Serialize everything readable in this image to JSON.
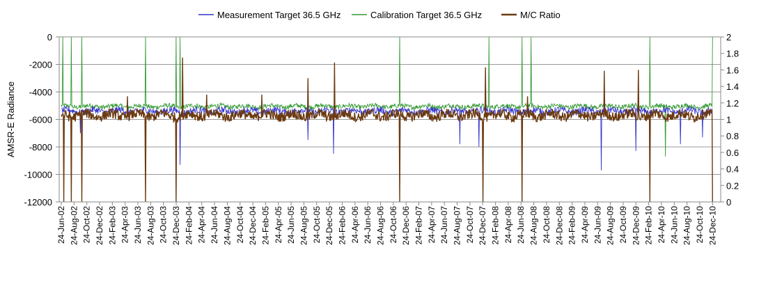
{
  "chart_data": {
    "type": "line",
    "title": "",
    "ylabel": "AMSR-E Radiance",
    "y2label": "",
    "ylim": [
      -12000,
      0
    ],
    "y2lim": [
      0,
      2
    ],
    "yticks": [
      0,
      -2000,
      -4000,
      -6000,
      -8000,
      -10000,
      -12000
    ],
    "yticks_labels": [
      "0",
      "-2000",
      "-4000",
      "-6000",
      "-8000",
      "-10000",
      "-12000"
    ],
    "y2ticks": [
      2,
      1.8,
      1.6,
      1.4,
      1.2,
      1,
      0.8,
      0.6,
      0.4,
      0.2,
      0
    ],
    "y2ticks_labels": [
      "2",
      "1.8",
      "1.6",
      "1.4",
      "1.2",
      "1",
      "0.8",
      "0.6",
      "0.4",
      "0.2",
      "0"
    ],
    "grid": true,
    "legend_position": "top",
    "x_categories": [
      "24-Jun-02",
      "24-Aug-02",
      "24-Oct-02",
      "24-Dec-02",
      "24-Feb-03",
      "24-Apr-03",
      "24-Jun-03",
      "24-Aug-03",
      "24-Oct-03",
      "24-Dec-03",
      "24-Feb-04",
      "24-Apr-04",
      "24-Jun-04",
      "24-Aug-04",
      "24-Oct-04",
      "24-Dec-04",
      "24-Feb-05",
      "24-Apr-05",
      "24-Jun-05",
      "24-Aug-05",
      "24-Oct-05",
      "24-Dec-05",
      "24-Feb-06",
      "24-Apr-06",
      "24-Jun-06",
      "24-Aug-06",
      "24-Oct-06",
      "24-Dec-06",
      "24-Feb-07",
      "24-Apr-07",
      "24-Jun-07",
      "24-Aug-07",
      "24-Oct-07",
      "24-Dec-07",
      "24-Feb-08",
      "24-Apr-08",
      "24-Jun-08",
      "24-Aug-08",
      "24-Oct-08",
      "24-Dec-08",
      "24-Feb-09",
      "24-Apr-09",
      "24-Jun-09",
      "24-Aug-09",
      "24-Oct-09",
      "24-Dec-09",
      "24-Feb-10",
      "24-Apr-10",
      "24-Jun-10",
      "24-Aug-10",
      "24-Oct-10",
      "24-Dec-10"
    ],
    "series": [
      {
        "name": "Measurement Target 36.5 GHz",
        "axis": "left",
        "color": "#3333cc",
        "baseline": -5400,
        "noise": 250,
        "spikes": [
          [
            1.5,
            -7000
          ],
          [
            9.3,
            -9300
          ],
          [
            19.3,
            -7500
          ],
          [
            21.3,
            -8500
          ],
          [
            31.2,
            -7800
          ],
          [
            32.7,
            -8000
          ],
          [
            42.3,
            -9700
          ],
          [
            45.0,
            -8300
          ],
          [
            48.5,
            -7800
          ],
          [
            50.2,
            -7300
          ]
        ]
      },
      {
        "name": "Calibration Target 36.5 GHz",
        "axis": "left",
        "color": "#339933",
        "baseline": -5050,
        "noise": 170,
        "spikes": [
          [
            0.1,
            0
          ],
          [
            0.8,
            0
          ],
          [
            1.6,
            0
          ],
          [
            6.6,
            0
          ],
          [
            9.0,
            0
          ],
          [
            9.3,
            0
          ],
          [
            26.5,
            0
          ],
          [
            33.5,
            0
          ],
          [
            36.1,
            0
          ],
          [
            36.8,
            0
          ],
          [
            46.1,
            0
          ],
          [
            47.3,
            -8700
          ],
          [
            51.0,
            0
          ]
        ]
      },
      {
        "name": "M/C Ratio",
        "axis": "right",
        "color": "#6b3a10",
        "baseline": 1.05,
        "noise": 0.06,
        "spikes": [
          [
            0.2,
            0
          ],
          [
            0.8,
            0
          ],
          [
            1.6,
            0
          ],
          [
            5.2,
            1.28
          ],
          [
            6.6,
            0
          ],
          [
            9.0,
            0
          ],
          [
            9.5,
            1.75
          ],
          [
            11.4,
            1.3
          ],
          [
            15.7,
            1.3
          ],
          [
            19.3,
            1.5
          ],
          [
            21.4,
            1.69
          ],
          [
            26.5,
            0
          ],
          [
            33.0,
            0
          ],
          [
            33.2,
            1.63
          ],
          [
            36.1,
            0
          ],
          [
            36.5,
            1.28
          ],
          [
            42.5,
            1.59
          ],
          [
            45.2,
            1.6
          ],
          [
            46.1,
            0
          ],
          [
            51.0,
            0
          ],
          [
            51.4,
            1.3
          ]
        ]
      }
    ]
  }
}
